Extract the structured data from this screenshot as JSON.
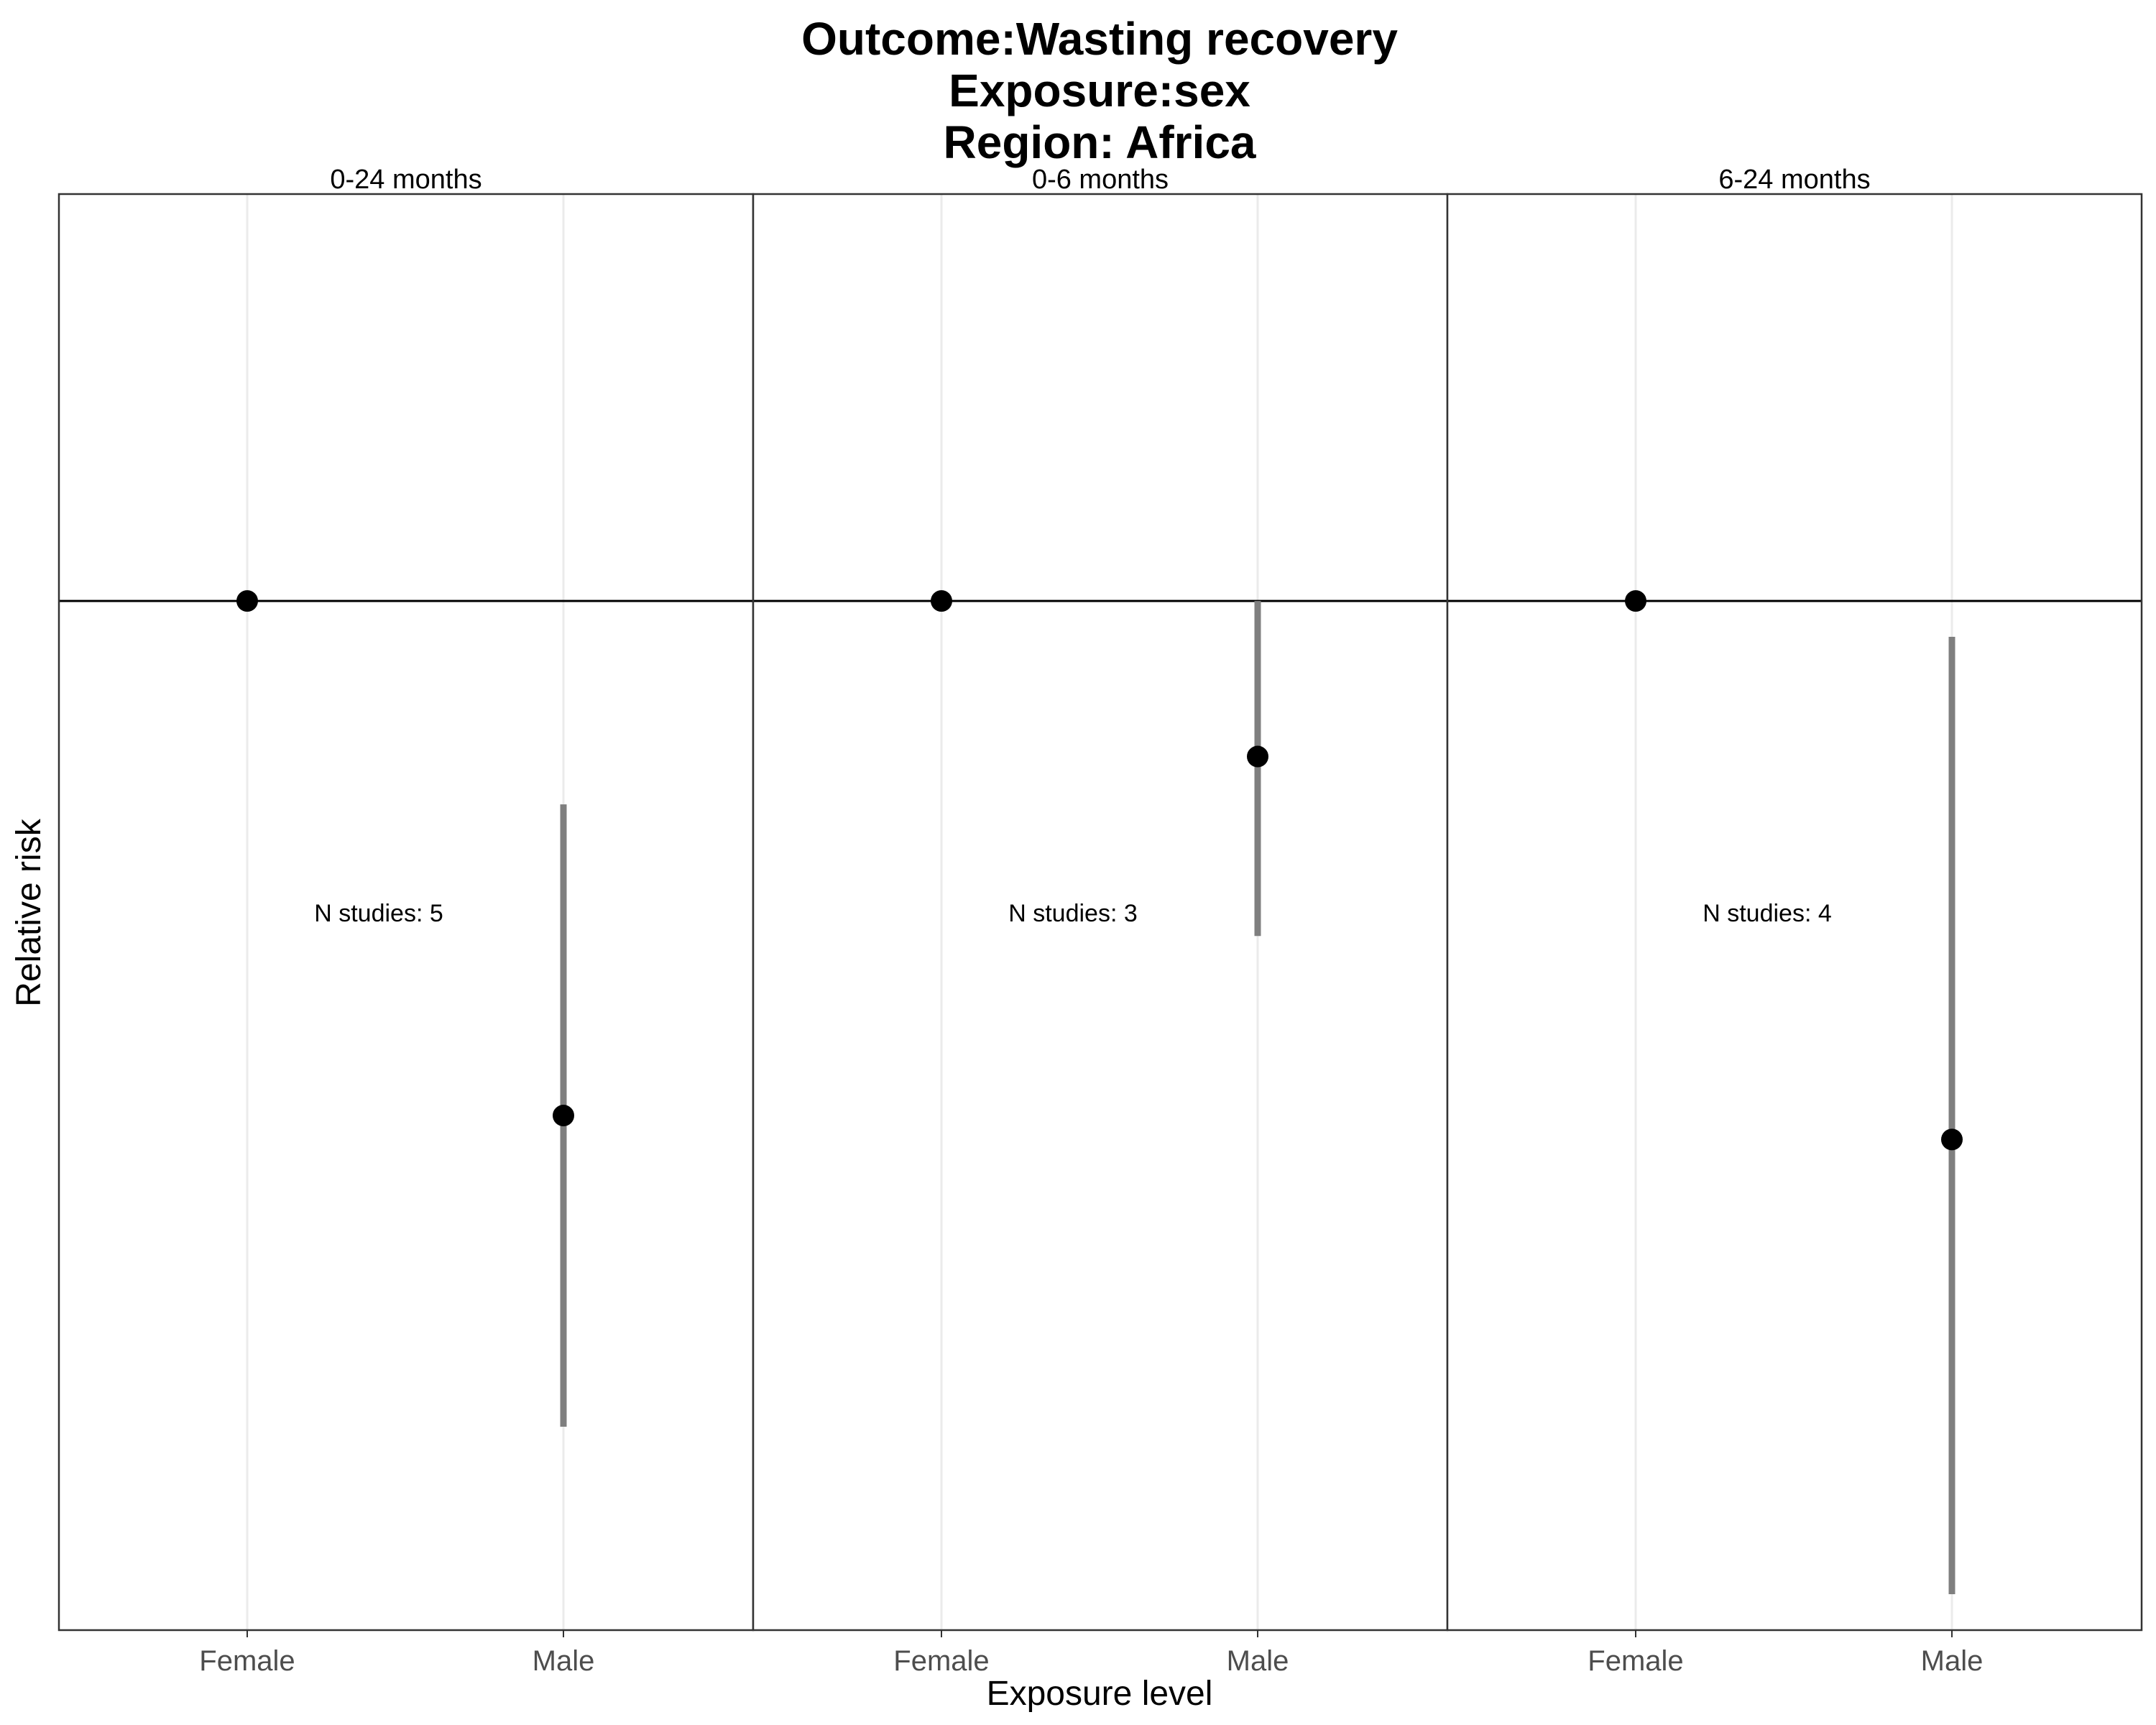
{
  "chart_data": {
    "type": "scatter",
    "title_lines": [
      "Outcome:Wasting recovery",
      "Exposure:sex",
      "Region: Africa"
    ],
    "xlabel": "Exposure level",
    "ylabel": "Relative risk",
    "categories": [
      "Female",
      "Male"
    ],
    "ylim": [
      0.914,
      1.034
    ],
    "reference_line": 1.0,
    "y_tick_labels_shown": false,
    "grid": "vertical major lines only",
    "colors": {
      "point": "#000000",
      "ci": "#7f7f7f",
      "reference": "#000000",
      "grid": "#ebebeb",
      "panel_border": "#333333"
    },
    "panels": [
      {
        "label": "0-24 months",
        "annotation": "N studies: 5",
        "points": [
          {
            "category": "Female",
            "rr": 1.0,
            "ci": null
          },
          {
            "category": "Male",
            "rr": 0.957,
            "ci": [
              0.931,
              0.983
            ]
          }
        ]
      },
      {
        "label": "0-6 months",
        "annotation": "N studies: 3",
        "points": [
          {
            "category": "Female",
            "rr": 1.0,
            "ci": null
          },
          {
            "category": "Male",
            "rr": 0.987,
            "ci": [
              0.972,
              1.0
            ]
          }
        ]
      },
      {
        "label": "6-24 months",
        "annotation": "N studies: 4",
        "points": [
          {
            "category": "Female",
            "rr": 1.0,
            "ci": null
          },
          {
            "category": "Male",
            "rr": 0.955,
            "ci": [
              0.917,
              0.997
            ]
          }
        ]
      }
    ]
  }
}
